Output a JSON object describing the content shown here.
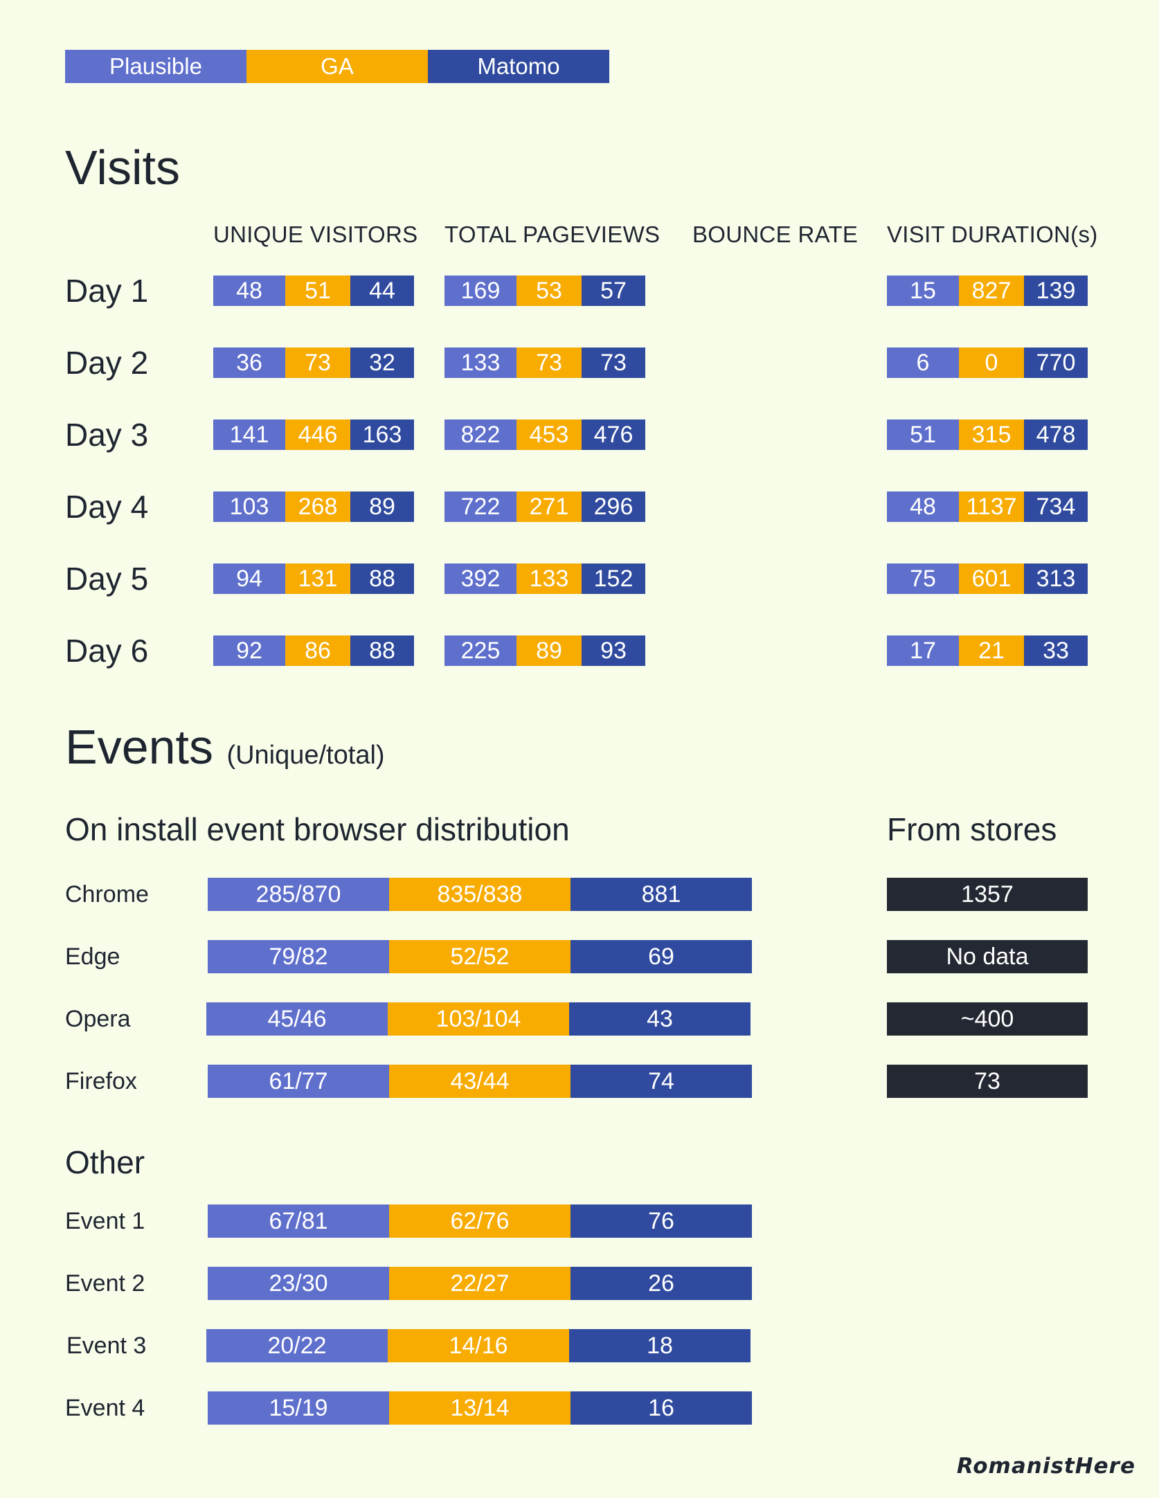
{
  "legend": {
    "plausible": "Plausible",
    "ga": "GA",
    "matomo": "Matomo"
  },
  "colors": {
    "plausible": "#5f6fcc",
    "ga": "#f8ab00",
    "matomo": "#2f4a9e",
    "stores": "#232832",
    "background": "#f7fde9"
  },
  "visits": {
    "title": "Visits",
    "columns": {
      "unique_visitors": "UNIQUE VISITORS",
      "total_pageviews": "TOTAL PAGEVIEWS",
      "bounce_rate": "BOUNCE RATE",
      "visit_duration": "VISIT DURATION(s)"
    },
    "rows": [
      {
        "label": "Day 1",
        "uv": [
          "48",
          "51",
          "44"
        ],
        "pv": [
          "169",
          "53",
          "57"
        ],
        "vd": [
          "15",
          "827",
          "139"
        ]
      },
      {
        "label": "Day 2",
        "uv": [
          "36",
          "73",
          "32"
        ],
        "pv": [
          "133",
          "73",
          "73"
        ],
        "vd": [
          "6",
          "0",
          "770"
        ]
      },
      {
        "label": "Day 3",
        "uv": [
          "141",
          "446",
          "163"
        ],
        "pv": [
          "822",
          "453",
          "476"
        ],
        "vd": [
          "51",
          "315",
          "478"
        ]
      },
      {
        "label": "Day 4",
        "uv": [
          "103",
          "268",
          "89"
        ],
        "pv": [
          "722",
          "271",
          "296"
        ],
        "vd": [
          "48",
          "1137",
          "734"
        ]
      },
      {
        "label": "Day 5",
        "uv": [
          "94",
          "131",
          "88"
        ],
        "pv": [
          "392",
          "133",
          "152"
        ],
        "vd": [
          "75",
          "601",
          "313"
        ]
      },
      {
        "label": "Day 6",
        "uv": [
          "92",
          "86",
          "88"
        ],
        "pv": [
          "225",
          "89",
          "93"
        ],
        "vd": [
          "17",
          "21",
          "33"
        ]
      }
    ]
  },
  "events": {
    "title": "Events",
    "subtitle": "(Unique/total)",
    "install": {
      "heading": "On install event browser distribution",
      "stores_heading": "From stores",
      "rows": [
        {
          "label": "Chrome",
          "values": [
            "285/870",
            "835/838",
            "881"
          ],
          "store": "1357"
        },
        {
          "label": "Edge",
          "values": [
            "79/82",
            "52/52",
            "69"
          ],
          "store": "No data"
        },
        {
          "label": "Opera",
          "values": [
            "45/46",
            "103/104",
            "43"
          ],
          "store": "~400"
        },
        {
          "label": "Firefox",
          "values": [
            "61/77",
            "43/44",
            "74"
          ],
          "store": "73"
        }
      ]
    },
    "other": {
      "heading": "Other",
      "rows": [
        {
          "label": "Event 1",
          "values": [
            "67/81",
            "62/76",
            "76"
          ]
        },
        {
          "label": "Event 2",
          "values": [
            "23/30",
            "22/27",
            "26"
          ]
        },
        {
          "label": "Event 3",
          "values": [
            "20/22",
            "14/16",
            "18"
          ]
        },
        {
          "label": "Event 4",
          "values": [
            "15/19",
            "13/14",
            "16"
          ]
        }
      ]
    }
  },
  "brand": "RomanistHere"
}
